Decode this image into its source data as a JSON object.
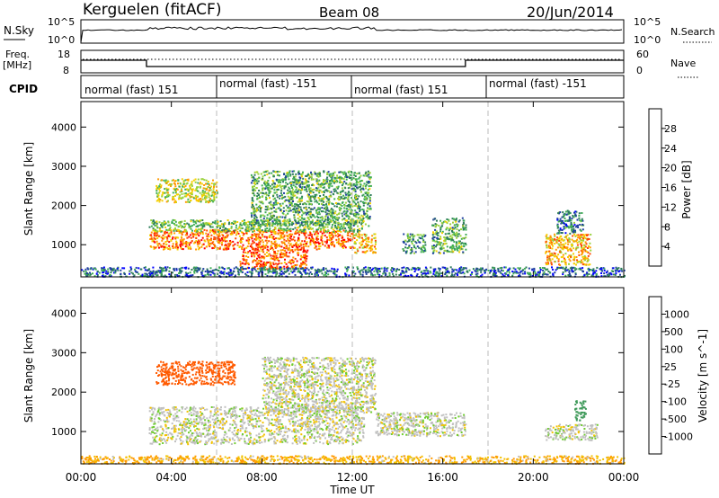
{
  "header": {
    "station": "Kerguelen (fitACF)",
    "beam": "Beam 08",
    "date": "20/Jun/2014"
  },
  "nsky_panel": {
    "left_label": "N.Sky",
    "left_ticks": [
      "10^5",
      "10^0"
    ],
    "right_ticks": [
      "10^5",
      "10^0"
    ],
    "right_label": "N.Search"
  },
  "freq_panel": {
    "left_label_1": "Freq.",
    "left_label_2": "[MHz]",
    "left_ticks": [
      "18",
      "8"
    ],
    "right_ticks": [
      "60",
      "0"
    ],
    "right_label": "Nave"
  },
  "cpid_panel": {
    "label": "CPID",
    "segments": [
      "normal (fast) 151",
      "normal (fast) -151",
      "normal (fast) 151",
      "normal (fast) -151"
    ]
  },
  "colorbar_power": {
    "label": "Power [dB]",
    "ticks": [
      "28",
      "24",
      "20",
      "16",
      "12",
      "8",
      "4"
    ],
    "colors": [
      "#ff0000",
      "#ff4a00",
      "#ff9a00",
      "#f5d000",
      "#9ad23c",
      "#3fae55",
      "#2e7d5a",
      "#1f3fa0",
      "#0000ff"
    ]
  },
  "colorbar_velocity": {
    "label": "Velocity [m s^-1]",
    "ticks": [
      "1000",
      "500",
      "100",
      "25",
      "-25",
      "-100",
      "-500",
      "-1000"
    ],
    "colors": [
      "#1f3fb0",
      "#2c6aa6",
      "#3f9a5a",
      "#6fcc2f",
      "#c0c0c0",
      "#f2c200",
      "#ff9900",
      "#ff5a00",
      "#ff0000"
    ]
  },
  "axes": {
    "ylabel": "Slant Range [km]",
    "xlabel": "Time UT",
    "x_ticks": [
      "00:00",
      "04:00",
      "08:00",
      "12:00",
      "16:00",
      "20:00",
      "00:00"
    ],
    "y_ticks": [
      "1000",
      "2000",
      "3000",
      "4000"
    ]
  },
  "chart_data": [
    {
      "type": "heatmap",
      "title": "Kerguelen (fitACF)",
      "quantity": "Power [dB]",
      "xlabel": "Time UT",
      "ylabel": "Slant Range [km]",
      "xlim": [
        0,
        24
      ],
      "ylim": [
        180,
        4650
      ],
      "y_ticks": [
        1000,
        2000,
        3000,
        4000
      ],
      "x_ticks": [
        "00:00",
        "04:00",
        "08:00",
        "12:00",
        "16:00",
        "20:00",
        "00:00"
      ],
      "color_range": [
        0,
        32
      ],
      "scatter_regions": [
        {
          "t0": 3.0,
          "t1": 12.0,
          "r0": 900,
          "r1": 1400,
          "value": 26
        },
        {
          "t0": 7.0,
          "t1": 10.0,
          "r0": 400,
          "r1": 900,
          "value": 28
        },
        {
          "t0": 3.0,
          "t1": 12.5,
          "r0": 1350,
          "r1": 1650,
          "value": 14
        },
        {
          "t0": 3.3,
          "t1": 6.0,
          "r0": 2100,
          "r1": 2700,
          "value": 18
        },
        {
          "t0": 7.5,
          "t1": 12.8,
          "r0": 1500,
          "r1": 2900,
          "value": 12
        },
        {
          "t0": 12.0,
          "t1": 13.0,
          "r0": 800,
          "r1": 1300,
          "value": 22
        },
        {
          "t0": 14.2,
          "t1": 15.2,
          "r0": 800,
          "r1": 1300,
          "value": 10
        },
        {
          "t0": 15.5,
          "t1": 17.0,
          "r0": 800,
          "r1": 1700,
          "value": 12
        },
        {
          "t0": 20.5,
          "t1": 22.5,
          "r0": 500,
          "r1": 1300,
          "value": 22
        },
        {
          "t0": 21.0,
          "t1": 22.2,
          "r0": 1300,
          "r1": 1900,
          "value": 8
        },
        {
          "t0": 0.0,
          "t1": 24.0,
          "r0": 200,
          "r1": 450,
          "value": 6
        }
      ]
    },
    {
      "type": "heatmap",
      "quantity": "Velocity [m s^-1]",
      "xlabel": "Time UT",
      "ylabel": "Slant Range [km]",
      "xlim": [
        0,
        24
      ],
      "ylim": [
        180,
        4650
      ],
      "y_ticks": [
        1000,
        2000,
        3000,
        4000
      ],
      "x_ticks": [
        "00:00",
        "04:00",
        "08:00",
        "12:00",
        "16:00",
        "20:00",
        "00:00"
      ],
      "color_range": [
        -1000,
        1000
      ],
      "scatter_regions": [
        {
          "t0": 3.0,
          "t1": 12.5,
          "r0": 700,
          "r1": 1650,
          "value": 0
        },
        {
          "t0": 8.0,
          "t1": 13.0,
          "r0": 1500,
          "r1": 2900,
          "value": 0
        },
        {
          "t0": 3.3,
          "t1": 6.8,
          "r0": 2200,
          "r1": 2800,
          "value": -400
        },
        {
          "t0": 13.0,
          "t1": 17.0,
          "r0": 900,
          "r1": 1500,
          "value": 0
        },
        {
          "t0": 20.5,
          "t1": 22.8,
          "r0": 800,
          "r1": 1200,
          "value": 0
        },
        {
          "t0": 21.8,
          "t1": 22.3,
          "r0": 1300,
          "r1": 1800,
          "value": 150
        },
        {
          "t0": 0.0,
          "t1": 24.0,
          "r0": 200,
          "r1": 400,
          "value": -60
        }
      ]
    }
  ]
}
